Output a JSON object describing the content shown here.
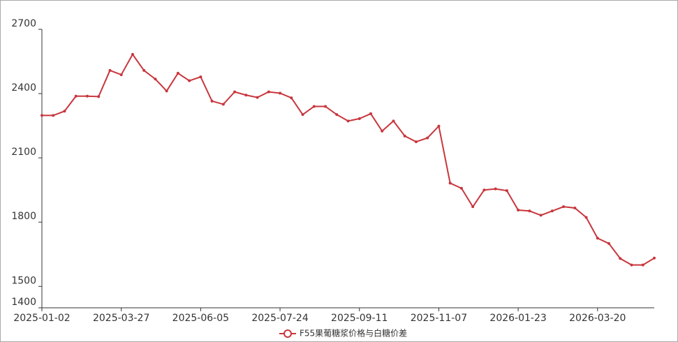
{
  "chart_data": {
    "type": "line",
    "categories": [
      "2025-01-02",
      null,
      null,
      null,
      null,
      null,
      null,
      "2025-03-27",
      null,
      null,
      null,
      null,
      null,
      null,
      "2025-06-05",
      null,
      null,
      null,
      null,
      null,
      null,
      "2025-07-24",
      null,
      null,
      null,
      null,
      null,
      null,
      "2025-09-11",
      null,
      null,
      null,
      null,
      null,
      null,
      "2025-11-07",
      null,
      null,
      null,
      null,
      null,
      null,
      "2026-01-23",
      null,
      null,
      null,
      null,
      null,
      null,
      "2026-03-20",
      null,
      null,
      null,
      null,
      null
    ],
    "series": [
      {
        "name": "F55果葡糖浆价格与白糖价差",
        "color": "#c8363d",
        "values": [
          2298,
          2298,
          2318,
          2388,
          2388,
          2386,
          2508,
          2488,
          2583,
          2508,
          2468,
          2412,
          2495,
          2460,
          2478,
          2365,
          2350,
          2408,
          2393,
          2382,
          2408,
          2402,
          2380,
          2302,
          2340,
          2340,
          2302,
          2272,
          2283,
          2306,
          2225,
          2272,
          2202,
          2175,
          2193,
          2248,
          1982,
          1958,
          1872,
          1950,
          1955,
          1947,
          1856,
          1852,
          1832,
          1852,
          1872,
          1866,
          1822,
          1725,
          1700,
          1630,
          1600,
          1600,
          1632
        ]
      }
    ],
    "ylim": [
      1400,
      2700
    ],
    "yticks": [
      1400,
      1500,
      1800,
      2100,
      2400,
      2700
    ],
    "legend": "bottom"
  }
}
